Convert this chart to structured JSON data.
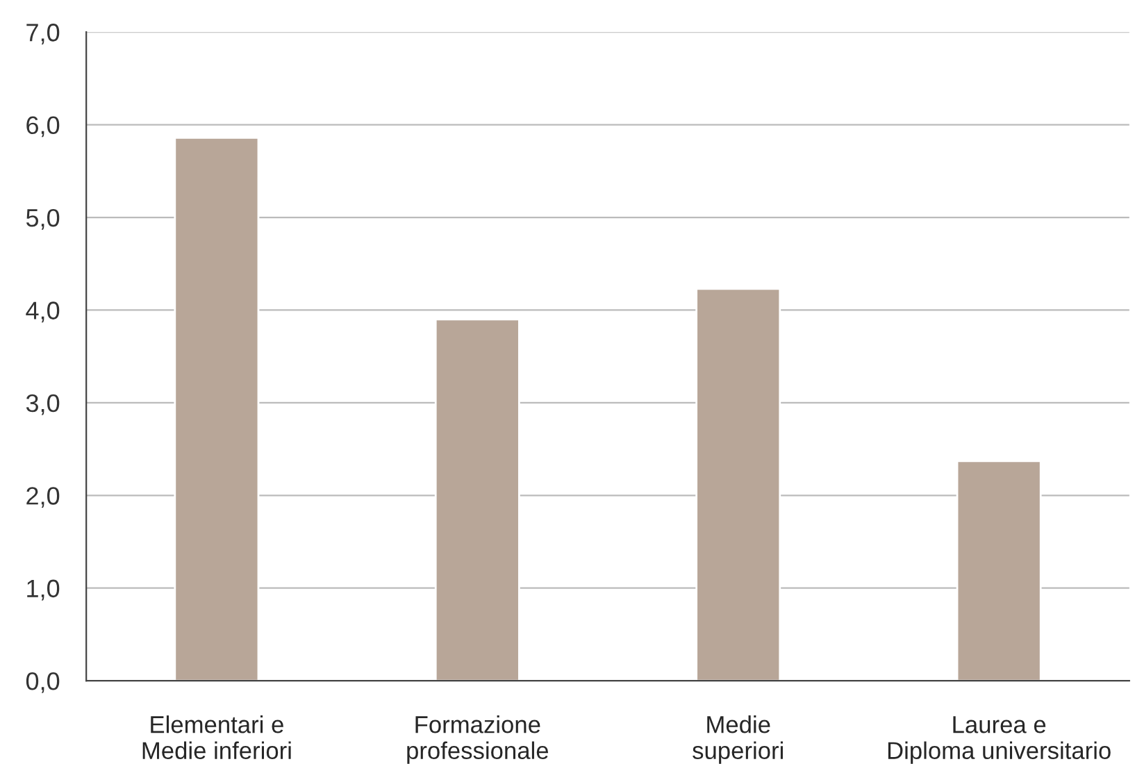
{
  "chart_data": {
    "type": "bar",
    "categories": [
      "Elementari e\nMedie inferiori",
      "Formazione\nprofessionale",
      "Medie\nsuperiori",
      "Laurea e\nDiploma universitario"
    ],
    "values": [
      5.86,
      3.9,
      4.23,
      2.37
    ],
    "color": "#b8a698",
    "ylim": [
      0,
      7
    ],
    "yticks": [
      {
        "value": 0,
        "label": "0,0"
      },
      {
        "value": 1,
        "label": "1,0"
      },
      {
        "value": 2,
        "label": "2,0"
      },
      {
        "value": 3,
        "label": "3,0"
      },
      {
        "value": 4,
        "label": "4,0"
      },
      {
        "value": 5,
        "label": "5,0"
      },
      {
        "value": 6,
        "label": "6,0"
      },
      {
        "value": 7,
        "label": "7,0"
      }
    ],
    "grid": "y",
    "legend": false
  }
}
